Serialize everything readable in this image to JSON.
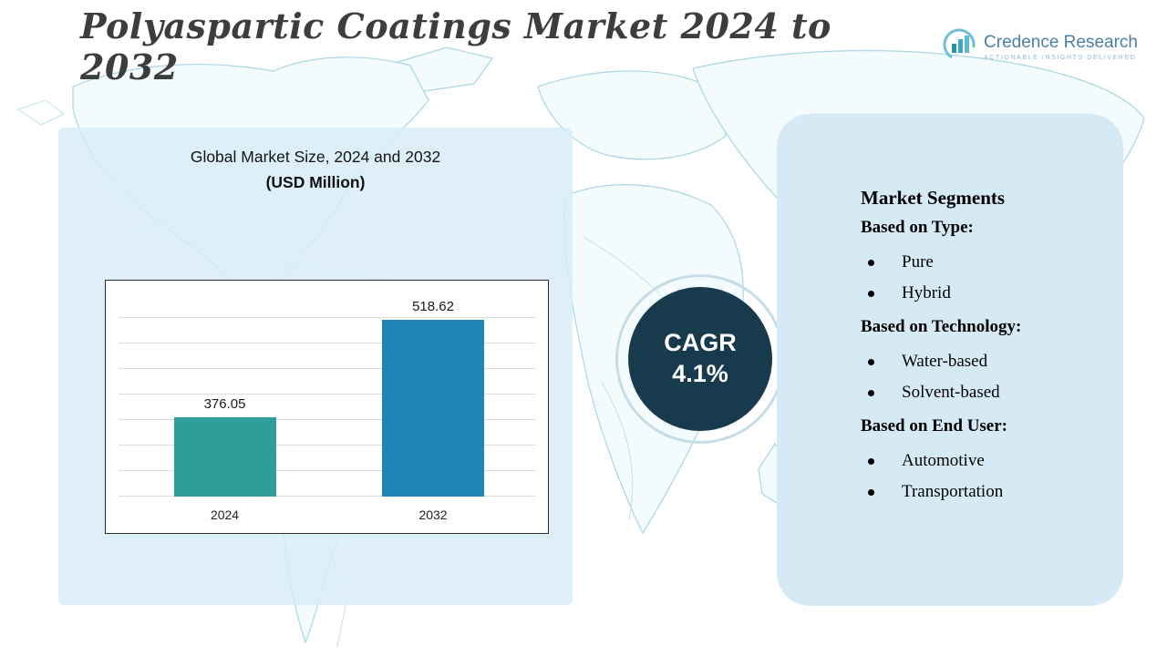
{
  "title": "Polyaspartic Coatings Market 2024 to 2032",
  "logo": {
    "name": "Credence Research",
    "tagline": "ACTIONABLE INSIGHTS DELIVERED"
  },
  "market_size_panel": {
    "heading": "Global Market Size, 2024 and 2032",
    "subheading": "(USD Million)"
  },
  "chart_data": {
    "type": "bar",
    "categories": [
      "2024",
      "2032"
    ],
    "values": [
      376.05,
      518.62
    ],
    "value_labels": [
      "376.05",
      "518.62"
    ],
    "title": "Global Market Size, 2024 and 2032 (USD Million)",
    "xlabel": "",
    "ylabel": "",
    "ylim": [
      260,
      560
    ],
    "grid": true,
    "legend": false,
    "bar_colors": [
      "#2f9e9b",
      "#1d85b8"
    ],
    "bar_centers_pct": [
      25.5,
      75.5
    ]
  },
  "cagr": {
    "label": "CAGR",
    "value": "4.1%"
  },
  "segments": {
    "title": "Market Segments",
    "groups": [
      {
        "heading": "Based on Type:",
        "items": [
          "Pure",
          "Hybrid"
        ]
      },
      {
        "heading": "Based on Technology:",
        "items": [
          "Water-based",
          "Solvent-based"
        ]
      },
      {
        "heading": "Based on End User:",
        "items": [
          "Automotive",
          "Transportation"
        ]
      }
    ]
  },
  "colors": {
    "panel_background": "#d8ecf7",
    "cagr_circle": "#173b4d",
    "bar_2024": "#2f9e9b",
    "bar_2032": "#1d85b8",
    "map_line": "#a9d6e3",
    "title_text": "#3d3d3d",
    "logo_text": "#4a80a6"
  }
}
